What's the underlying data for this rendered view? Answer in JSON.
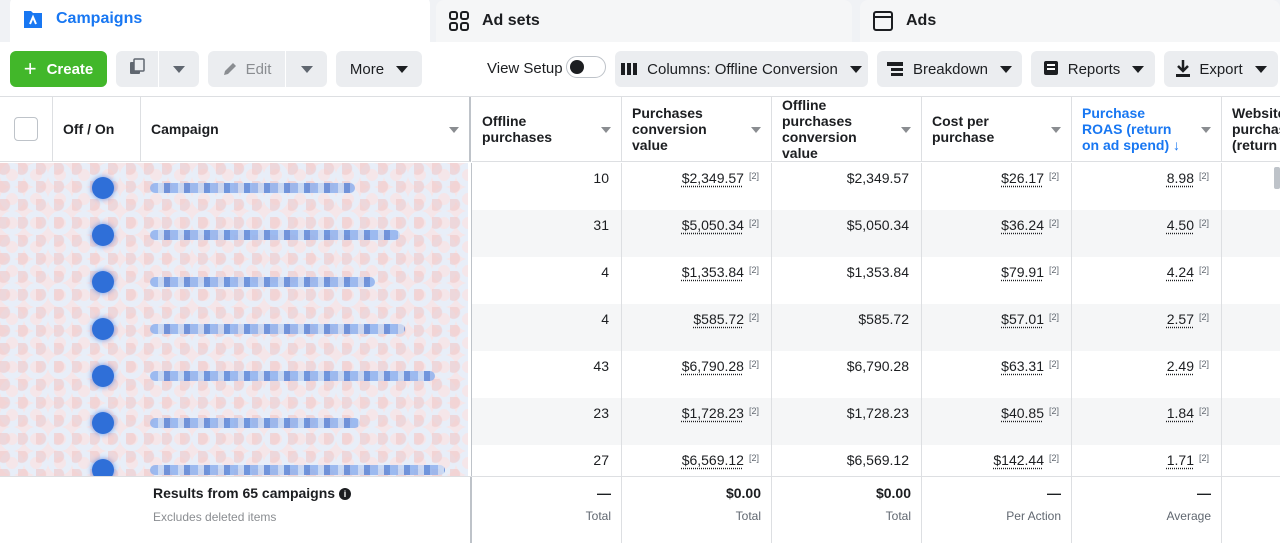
{
  "tabs": {
    "campaigns": "Campaigns",
    "adsets": "Ad sets",
    "ads": "Ads"
  },
  "toolbar": {
    "create_label": "Create",
    "edit_label": "Edit",
    "more_label": "More",
    "view_setup_label": "View Setup",
    "view_setup_on": false,
    "columns_label": "Columns: Offline Conversion",
    "breakdown_label": "Breakdown",
    "reports_label": "Reports",
    "export_label": "Export"
  },
  "table": {
    "headers": {
      "off_on": "Off / On",
      "campaign": "Campaign",
      "offline_purchases": "Offline purchases",
      "purchases_conv_value": "Purchases conversion value",
      "offline_purchases_conv_value": "Offline purchases conversion value",
      "cost_per_purchase": "Cost per purchase",
      "purchase_roas": "Purchase ROAS (return on ad spend)",
      "website_purchase": "Website purchas (return"
    },
    "footnote_marker": "[2]",
    "rows": [
      {
        "offline_purchases": "10",
        "purchases_conv_value": "$2,349.57",
        "offline_conv_value": "$2,349.57",
        "cost_per_purchase": "$26.17",
        "roas": "8.98"
      },
      {
        "offline_purchases": "31",
        "purchases_conv_value": "$5,050.34",
        "offline_conv_value": "$5,050.34",
        "cost_per_purchase": "$36.24",
        "roas": "4.50"
      },
      {
        "offline_purchases": "4",
        "purchases_conv_value": "$1,353.84",
        "offline_conv_value": "$1,353.84",
        "cost_per_purchase": "$79.91",
        "roas": "4.24"
      },
      {
        "offline_purchases": "4",
        "purchases_conv_value": "$585.72",
        "offline_conv_value": "$585.72",
        "cost_per_purchase": "$57.01",
        "roas": "2.57"
      },
      {
        "offline_purchases": "43",
        "purchases_conv_value": "$6,790.28",
        "offline_conv_value": "$6,790.28",
        "cost_per_purchase": "$63.31",
        "roas": "2.49"
      },
      {
        "offline_purchases": "23",
        "purchases_conv_value": "$1,728.23",
        "offline_conv_value": "$1,728.23",
        "cost_per_purchase": "$40.85",
        "roas": "1.84"
      },
      {
        "offline_purchases": "27",
        "purchases_conv_value": "$6,569.12",
        "offline_conv_value": "$6,569.12",
        "cost_per_purchase": "$142.44",
        "roas": "1.71"
      }
    ],
    "footer": {
      "results_label": "Results from 65 campaigns",
      "excludes_label": "Excludes deleted items",
      "offline_purchases": {
        "value": "—",
        "sub": "Total"
      },
      "purchases_conv_value": {
        "value": "$0.00",
        "sub": "Total"
      },
      "offline_conv_value": {
        "value": "$0.00",
        "sub": "Total"
      },
      "cost_per_purchase": {
        "value": "—",
        "sub": "Per Action"
      },
      "roas": {
        "value": "—",
        "sub": "Average"
      }
    }
  },
  "icons": {
    "campaigns_tab": "campaign-folder-icon",
    "adsets_tab": "grid-icon",
    "ads_tab": "window-icon",
    "duplicate": "duplicate-icon",
    "edit": "pencil-icon",
    "columns": "columns-icon",
    "breakdown": "breakdown-icon",
    "reports": "reports-icon",
    "export": "download-icon"
  },
  "colors": {
    "accent": "#1877f2",
    "create": "#42b72a",
    "alt_row": "#f5f6f7"
  }
}
